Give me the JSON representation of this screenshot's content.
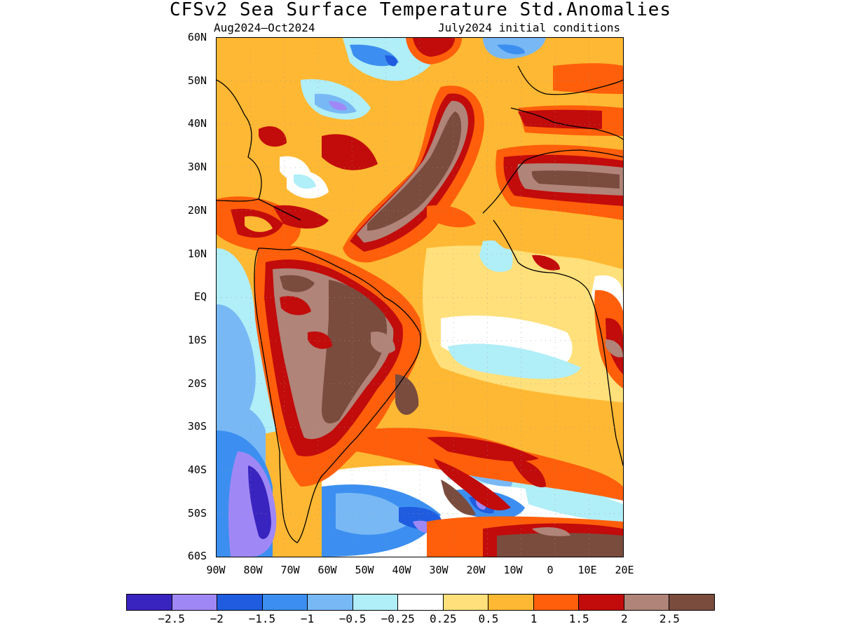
{
  "title": "CFSv2 Sea Surface Temperature Std.Anomalies",
  "subtitle_left": "Aug2024–Oct2024",
  "subtitle_right": "July2024 initial conditions",
  "lat_labels": [
    "60N",
    "50N",
    "40N",
    "30N",
    "20N",
    "10N",
    "EQ",
    "10S",
    "20S",
    "30S",
    "40S",
    "50S",
    "60S"
  ],
  "lon_labels": [
    "90W",
    "80W",
    "70W",
    "60W",
    "50W",
    "40W",
    "30W",
    "20W",
    "10W",
    "0",
    "10E",
    "20E"
  ],
  "colorbar": {
    "colors": [
      "#3a24c0",
      "#9f88f5",
      "#1f5ce0",
      "#3c8ff0",
      "#78b8f5",
      "#b0eef8",
      "#ffffff",
      "#ffe07a",
      "#ffb833",
      "#ff5f0a",
      "#c20b0b",
      "#b08478",
      "#7a4c3e"
    ],
    "labels": [
      "−2.5",
      "−2",
      "−1.5",
      "−1",
      "−0.5",
      "−0.25",
      "0.25",
      "0.5",
      "1",
      "1.5",
      "2",
      "2.5"
    ]
  },
  "map_colors": {
    "ocean_base": "#ffe07a",
    "white": "#ffffff",
    "light_blue": "#b0eef8",
    "mid_blue": "#78b8f5",
    "blue": "#3c8ff0",
    "dark_blue": "#1f5ce0",
    "lavender": "#9f88f5",
    "purple": "#3a24c0",
    "yellow": "#ffe07a",
    "orange": "#ffb833",
    "dark_orange": "#ff5f0a",
    "red": "#c20b0b",
    "taupe": "#b08478",
    "brown": "#7a4c3e",
    "coast": "#000000"
  }
}
